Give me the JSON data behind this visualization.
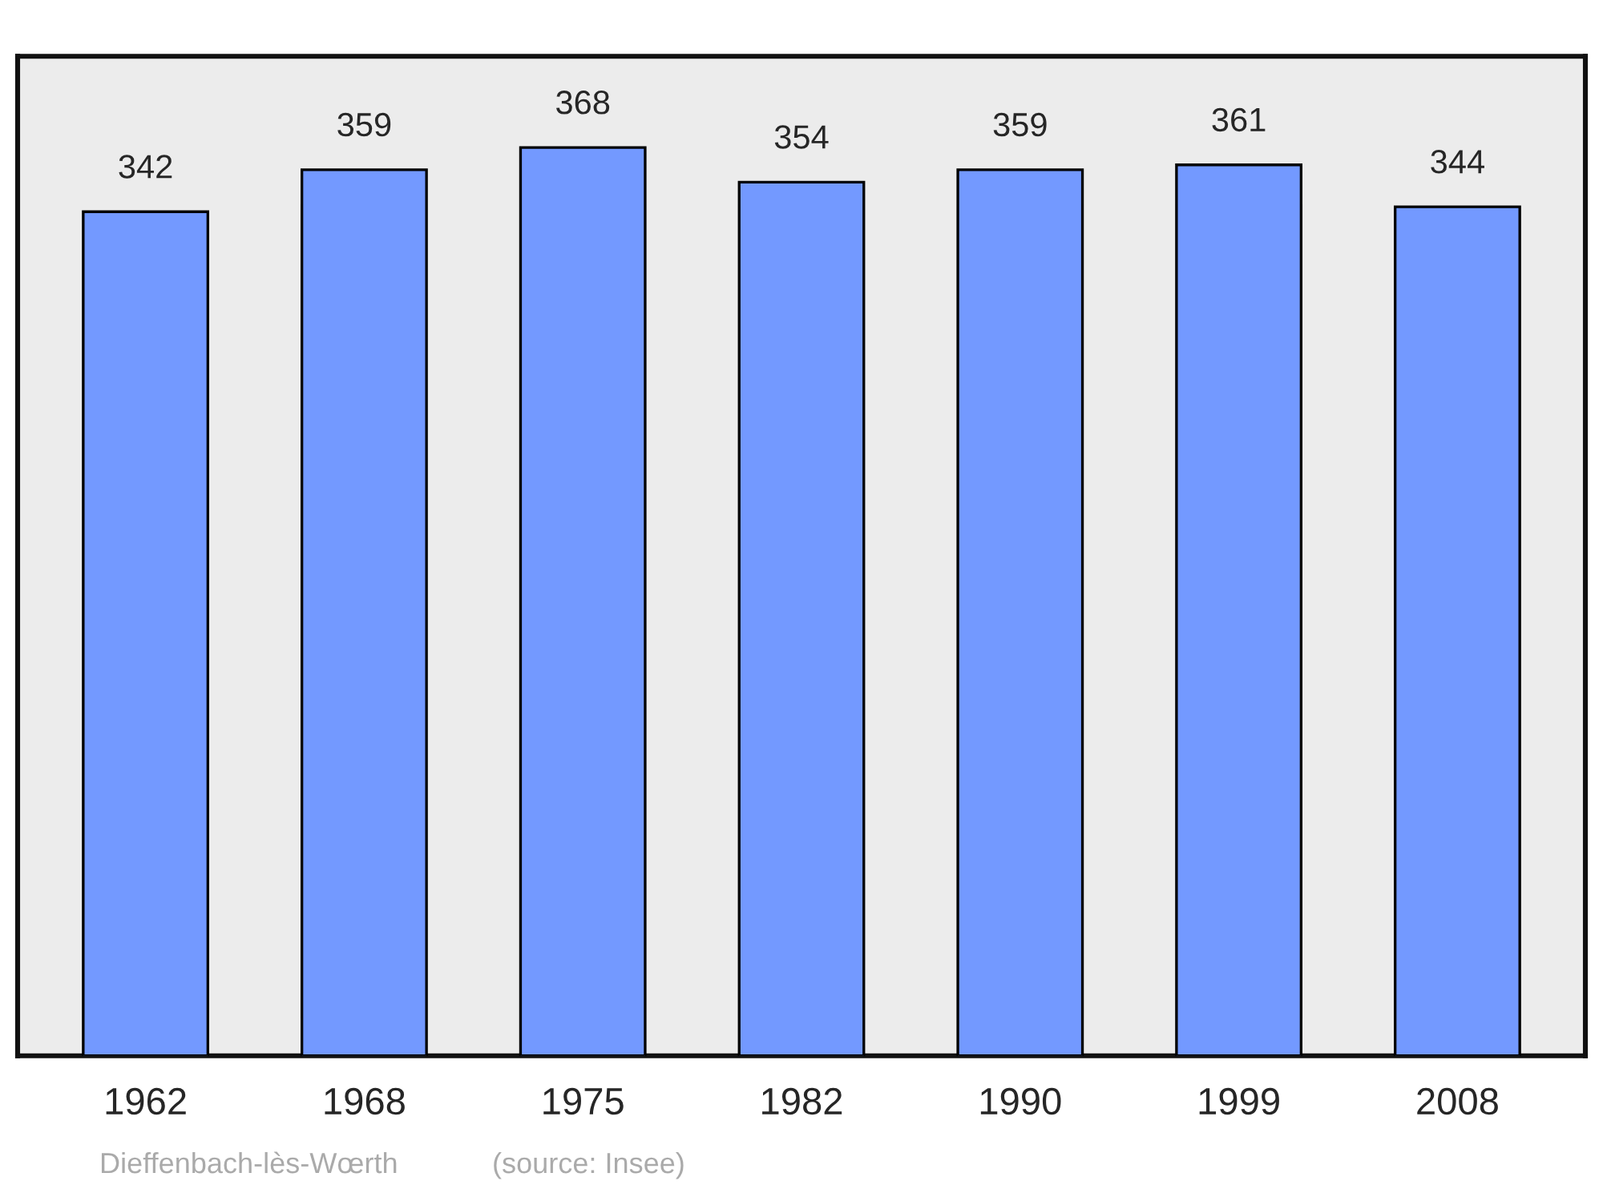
{
  "chart_data": {
    "type": "bar",
    "categories": [
      "1962",
      "1968",
      "1975",
      "1982",
      "1990",
      "1999",
      "2008"
    ],
    "values": [
      342,
      359,
      368,
      354,
      359,
      361,
      344
    ],
    "color": "#7399ff",
    "data_labels": true,
    "ylim": [
      0,
      405
    ],
    "grid": false,
    "legend": false,
    "annotations": [
      "Dieffenbach-lès-Wœrth",
      "(source: Insee)"
    ]
  }
}
